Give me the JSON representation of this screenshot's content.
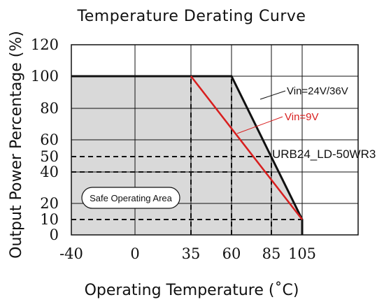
{
  "chart_data": {
    "type": "line",
    "title": "Temperature Derating Curve",
    "xlabel": "Operating Temperature (˚C)",
    "ylabel": "Output Power Percentage (%)",
    "xticks": [
      -40,
      0,
      35,
      60,
      85,
      105
    ],
    "xtick_labels": [
      "-40",
      "0",
      "35",
      "60",
      "85",
      "105"
    ],
    "yticks": [
      0,
      10,
      20,
      40,
      50,
      60,
      80,
      100,
      120
    ],
    "ytick_labels": [
      "0",
      "10",
      "20",
      "40",
      "50",
      "60",
      "80",
      "100",
      "120"
    ],
    "xlim": [
      -40,
      120
    ],
    "ylim": [
      0,
      120
    ],
    "grid": true,
    "series": [
      {
        "name": "Vin=24V/36V",
        "color": "#111111",
        "x": [
          -40,
          60,
          105,
          105
        ],
        "y": [
          100,
          100,
          10,
          0
        ]
      },
      {
        "name": "Vin=9V",
        "color": "#d81e1e",
        "x": [
          35,
          105
        ],
        "y": [
          100,
          10
        ]
      }
    ],
    "safe_area_fill": "#d9d9d9",
    "safe_area_label": "Safe Operating Area",
    "model_label": "URB24_LD-50WR3",
    "reference_lines": [
      {
        "x": 35,
        "y_from": 0,
        "y_to": 100
      },
      {
        "x": 60,
        "y_from": 0,
        "y_to": 100
      },
      {
        "x": 85,
        "y_from": 0,
        "y_to": 50
      },
      {
        "y": 50,
        "x_from": -40,
        "x_to": 85
      },
      {
        "y": 40,
        "x_from": -40,
        "x_to": 85
      },
      {
        "y": 10,
        "x_from": -40,
        "x_to": 105
      }
    ]
  }
}
